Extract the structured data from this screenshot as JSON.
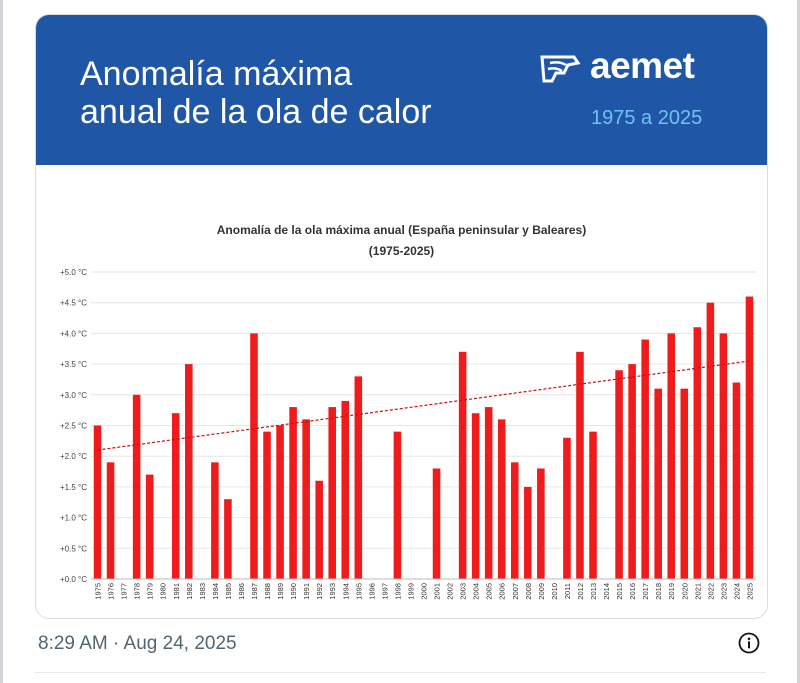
{
  "banner": {
    "title_line1": "Anomalía máxima",
    "title_line2": "anual de la ola de calor",
    "brand": "aemet",
    "years": "1975 a 2025"
  },
  "footer": {
    "timestamp": "8:29 AM · Aug 24, 2025"
  },
  "icons": {
    "info": "info-icon",
    "logo": "aemet-logo-icon"
  },
  "colors": {
    "banner": "#1f57a6",
    "bar": "#ee1c1c",
    "trend": "#c81010",
    "years": "#6fc2f2"
  },
  "chart_data": {
    "type": "bar",
    "title": "Anomalía de la ola máxima anual (España peninsular y Baleares)",
    "subtitle": "(1975-2025)",
    "ylim": [
      0,
      5
    ],
    "yticks": [
      0,
      0.5,
      1,
      1.5,
      2,
      2.5,
      3,
      3.5,
      4,
      4.5,
      5
    ],
    "ytick_labels": [
      "+0.0 °C",
      "+0.5 °C",
      "+1.0 °C",
      "+1.5 °C",
      "+2.0 °C",
      "+2.5 °C",
      "+3.0 °C",
      "+3.5 °C",
      "+4.0 °C",
      "+4.5 °C",
      "+5.0 °C"
    ],
    "grid": true,
    "categories": [
      "1975",
      "1976",
      "1977",
      "1978",
      "1979",
      "1980",
      "1981",
      "1982",
      "1983",
      "1984",
      "1985",
      "1986",
      "1987",
      "1988",
      "1989",
      "1990",
      "1991",
      "1992",
      "1993",
      "1994",
      "1995",
      "1996",
      "1997",
      "1998",
      "1999",
      "2000",
      "2001",
      "2002",
      "2003",
      "2004",
      "2005",
      "2006",
      "2007",
      "2008",
      "2009",
      "2010",
      "2011",
      "2012",
      "2013",
      "2014",
      "2015",
      "2016",
      "2017",
      "2018",
      "2019",
      "2020",
      "2021",
      "2022",
      "2023",
      "2024",
      "2025"
    ],
    "values": [
      2.5,
      1.9,
      0,
      3.0,
      1.7,
      0,
      2.7,
      3.5,
      0,
      1.9,
      1.3,
      0,
      4.0,
      2.4,
      2.5,
      2.8,
      2.6,
      1.6,
      2.8,
      2.9,
      3.3,
      0,
      0,
      2.4,
      0,
      0,
      1.8,
      0,
      3.7,
      2.7,
      2.8,
      2.6,
      1.9,
      1.5,
      1.8,
      0,
      2.3,
      3.7,
      2.4,
      0,
      3.4,
      3.5,
      3.9,
      3.1,
      4.0,
      3.1,
      4.1,
      4.5,
      4.0,
      3.2,
      4.6
    ],
    "trend": {
      "start": 2.1,
      "end": 3.55
    }
  }
}
